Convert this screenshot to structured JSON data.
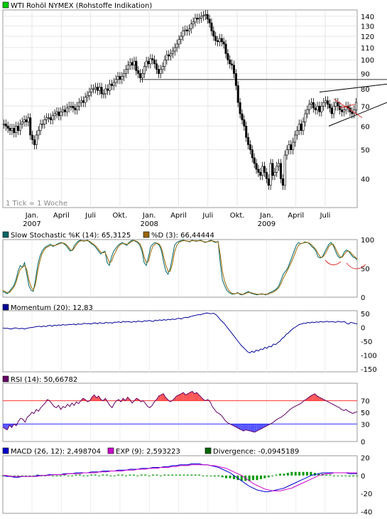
{
  "chart_data": [
    {
      "type": "candlestick",
      "title": "WTI Rohöl NYMEX (Rohstoffe Indikation)",
      "note": "1 Tick = 1 Woche",
      "x_ticks": [
        "Jan.",
        "April",
        "Juli",
        "Okt.",
        "Jan.",
        "April",
        "Juli",
        "Okt.",
        "Jan.",
        "April",
        "Juli"
      ],
      "year_labels": [
        {
          "label": "2007",
          "under_tick": 0
        },
        {
          "label": "2008",
          "under_tick": 4
        },
        {
          "label": "2009",
          "under_tick": 8
        }
      ],
      "y_ticks": [
        40,
        50,
        60,
        70,
        80,
        90,
        100,
        110,
        120,
        130,
        140
      ],
      "ylim": [
        32,
        147
      ],
      "scale": "log",
      "horizontal_line": 86,
      "close": [
        61,
        60,
        59,
        58,
        59,
        57,
        60,
        58,
        61,
        62,
        63,
        62,
        64,
        56,
        54,
        52,
        56,
        58,
        61,
        61,
        63,
        64,
        64,
        63,
        65,
        66,
        67,
        65,
        67,
        68,
        67,
        69,
        70,
        70,
        69,
        68,
        70,
        72,
        73,
        72,
        75,
        76,
        78,
        80,
        80,
        81,
        79,
        81,
        77,
        77,
        80,
        79,
        83,
        82,
        84,
        86,
        88,
        86,
        88,
        90,
        93,
        96,
        98,
        96,
        99,
        92,
        90,
        87,
        90,
        95,
        99,
        97,
        101,
        100,
        97,
        93,
        90,
        93,
        95,
        100,
        104,
        103,
        105,
        107,
        110,
        113,
        117,
        120,
        125,
        126,
        125,
        127,
        132,
        134,
        138,
        137,
        138,
        140,
        141,
        142,
        137,
        133,
        125,
        120,
        116,
        115,
        118,
        115,
        113,
        105,
        100,
        97,
        96,
        90,
        82,
        72,
        66,
        63,
        60,
        55,
        52,
        50,
        47,
        45,
        43,
        42,
        41,
        44,
        42,
        40,
        38,
        45,
        41,
        42,
        44,
        45,
        40,
        38,
        48,
        50,
        52,
        50,
        53,
        56,
        58,
        61,
        58,
        62,
        66,
        68,
        71,
        72,
        69,
        68,
        70,
        67,
        70,
        72,
        73,
        71,
        69,
        66,
        70,
        72,
        70,
        68,
        67,
        68,
        70,
        69,
        67,
        66,
        68,
        72
      ],
      "x_end_offset": 544
    },
    {
      "type": "line",
      "label": "Slow Stochastic %K (14): 65,3125",
      "label2": "%D (3): 66,44444",
      "y_ticks": [
        0,
        50,
        100
      ],
      "ylim": [
        0,
        100
      ],
      "series": [
        {
          "name": "Slow Stochastic %K (14): 65,3125",
          "color": "#006666",
          "values": [
            10,
            8,
            6,
            10,
            15,
            20,
            30,
            45,
            55,
            52,
            60,
            40,
            20,
            12,
            10,
            30,
            55,
            70,
            80,
            85,
            88,
            90,
            92,
            88,
            90,
            92,
            94,
            95,
            93,
            90,
            85,
            80,
            82,
            90,
            95,
            98,
            99,
            97,
            98,
            99,
            95,
            92,
            90,
            85,
            80,
            75,
            78,
            80,
            60,
            55,
            70,
            80,
            85,
            90,
            93,
            95,
            92,
            90,
            95,
            98,
            99,
            97,
            95,
            90,
            80,
            60,
            55,
            70,
            88,
            92,
            95,
            93,
            90,
            80,
            60,
            45,
            40,
            50,
            70,
            90,
            95,
            97,
            98,
            99,
            98,
            97,
            96,
            99,
            98,
            97,
            98,
            99,
            97,
            95,
            96,
            98,
            99,
            96,
            95,
            97,
            60,
            30,
            20,
            12,
            8,
            6,
            5,
            6,
            8,
            5,
            4,
            6,
            8,
            10,
            7,
            6,
            5,
            4,
            5,
            6,
            5,
            4,
            6,
            8,
            10,
            12,
            15,
            20,
            30,
            40,
            45,
            50,
            60,
            70,
            80,
            90,
            95,
            93,
            94,
            96,
            95,
            93,
            88,
            85,
            80,
            70,
            68,
            70,
            78,
            85,
            92,
            95,
            90,
            80,
            72,
            68,
            70,
            78,
            82,
            80,
            75,
            70,
            68,
            65
          ]
        },
        {
          "name": "%D (3): 66,44444",
          "color": "#996600",
          "values": [
            12,
            10,
            8,
            8,
            12,
            17,
            25,
            38,
            48,
            52,
            55,
            48,
            30,
            18,
            12,
            22,
            45,
            62,
            75,
            82,
            86,
            88,
            90,
            90,
            90,
            91,
            93,
            94,
            94,
            92,
            88,
            83,
            81,
            86,
            92,
            96,
            98,
            98,
            98,
            98,
            97,
            94,
            91,
            88,
            83,
            78,
            77,
            78,
            70,
            60,
            62,
            72,
            80,
            87,
            91,
            93,
            93,
            92,
            93,
            96,
            98,
            98,
            96,
            93,
            85,
            70,
            60,
            62,
            78,
            88,
            92,
            94,
            92,
            85,
            70,
            55,
            45,
            45,
            58,
            78,
            90,
            95,
            97,
            98,
            98,
            97,
            97,
            98,
            98,
            98,
            98,
            98,
            97,
            96,
            96,
            97,
            98,
            97,
            96,
            96,
            75,
            45,
            28,
            18,
            11,
            8,
            6,
            6,
            7,
            6,
            5,
            5,
            7,
            8,
            8,
            7,
            6,
            5,
            5,
            5,
            5,
            5,
            5,
            7,
            8,
            10,
            13,
            17,
            24,
            33,
            40,
            47,
            55,
            63,
            72,
            82,
            90,
            93,
            94,
            95,
            95,
            94,
            91,
            87,
            83,
            76,
            70,
            69,
            74,
            80,
            88,
            92,
            92,
            85,
            77,
            71,
            69,
            74,
            79,
            80,
            78,
            73,
            70,
            66
          ]
        }
      ],
      "annotation": "red hand-drawn arcs near recent lows"
    },
    {
      "type": "line",
      "label": "Momentum (20): 12,83",
      "y_ticks": [
        -150,
        -100,
        -50,
        0,
        50
      ],
      "ylim": [
        -160,
        60
      ],
      "series": [
        {
          "name": "Momentum (20): 12,83",
          "color": "#000099",
          "values": [
            -2,
            -4,
            -3,
            -5,
            -6,
            -3,
            -2,
            -4,
            -5,
            -3,
            -6,
            -4,
            -2,
            -1,
            0,
            2,
            3,
            4,
            2,
            5,
            3,
            6,
            7,
            4,
            8,
            6,
            9,
            7,
            10,
            8,
            9,
            11,
            10,
            12,
            9,
            13,
            11,
            12,
            15,
            13,
            14,
            12,
            15,
            16,
            13,
            17,
            15,
            14,
            18,
            16,
            17,
            15,
            19,
            18,
            20,
            17,
            22,
            19,
            21,
            20,
            18,
            22,
            19,
            23,
            21,
            20,
            24,
            22,
            25,
            23,
            21,
            26,
            24,
            27,
            25,
            28,
            26,
            29,
            27,
            30,
            28,
            31,
            33,
            30,
            34,
            36,
            35,
            38,
            40,
            42,
            44,
            46,
            45,
            48,
            50,
            52,
            50,
            49,
            51,
            47,
            40,
            30,
            22,
            15,
            5,
            -5,
            -15,
            -25,
            -35,
            -45,
            -55,
            -65,
            -72,
            -80,
            -88,
            -92,
            -86,
            -90,
            -82,
            -85,
            -78,
            -80,
            -72,
            -75,
            -68,
            -70,
            -60,
            -62,
            -55,
            -50,
            -40,
            -35,
            -25,
            -20,
            -12,
            -5,
            0,
            5,
            10,
            12,
            15,
            14,
            18,
            16,
            19,
            17,
            20,
            18,
            21,
            19,
            20,
            22,
            19,
            21,
            20,
            18,
            22,
            20,
            19,
            21,
            15,
            12,
            18,
            16,
            14,
            13
          ]
        }
      ]
    },
    {
      "type": "line",
      "label": "RSI (14): 50,66782",
      "y_ticks": [
        0,
        30,
        50,
        70
      ],
      "ylim": [
        0,
        100
      ],
      "overbought": 70,
      "oversold": 30,
      "series": [
        {
          "name": "RSI (14): 50,66782",
          "color": "#660066",
          "values": [
            25,
            22,
            20,
            28,
            24,
            30,
            27,
            35,
            40,
            38,
            33,
            42,
            45,
            50,
            48,
            55,
            52,
            58,
            62,
            66,
            72,
            70,
            65,
            60,
            58,
            62,
            55,
            60,
            58,
            64,
            60,
            66,
            62,
            68,
            65,
            70,
            74,
            72,
            68,
            70,
            76,
            80,
            75,
            78,
            72,
            70,
            74,
            68,
            62,
            58,
            65,
            70,
            72,
            68,
            74,
            70,
            76,
            72,
            66,
            70,
            74,
            72,
            68,
            70,
            65,
            60,
            58,
            62,
            68,
            72,
            78,
            80,
            82,
            76,
            72,
            68,
            70,
            74,
            78,
            80,
            82,
            84,
            80,
            82,
            84,
            86,
            82,
            84,
            80,
            76,
            72,
            70,
            72,
            68,
            60,
            55,
            50,
            48,
            45,
            40,
            35,
            32,
            30,
            28,
            26,
            24,
            22,
            20,
            18,
            20,
            19,
            18,
            17,
            16,
            18,
            20,
            22,
            24,
            26,
            28,
            30,
            32,
            35,
            38,
            40,
            42,
            45,
            48,
            52,
            55,
            58,
            60,
            62,
            64,
            66,
            70,
            72,
            75,
            78,
            80,
            82,
            78,
            76,
            74,
            72,
            70,
            68,
            66,
            64,
            62,
            60,
            58,
            55,
            53,
            55,
            52,
            50,
            48,
            50,
            51
          ]
        }
      ]
    },
    {
      "type": "line",
      "label": "MACD (26, 12): 2,498704",
      "label2": "EXP (9): 2,593223",
      "label3": "Divergence: -0,0945189",
      "y_ticks": [
        -40,
        -20,
        0,
        20
      ],
      "ylim": [
        -42,
        22
      ],
      "series": [
        {
          "name": "MACD (26, 12): 2,498704",
          "color": "#0000cc",
          "values": [
            0,
            -1,
            -1,
            -2,
            -2,
            -1,
            -1,
            -1,
            -1,
            0,
            0,
            0,
            1,
            1,
            1,
            1,
            2,
            2,
            2,
            3,
            3,
            3,
            3,
            4,
            4,
            4,
            5,
            5,
            5,
            5,
            6,
            6,
            6,
            7,
            7,
            7,
            8,
            8,
            8,
            9,
            9,
            9,
            10,
            10,
            11,
            11,
            12,
            12,
            12,
            13,
            13,
            13,
            12,
            12,
            11,
            10,
            9,
            7,
            5,
            3,
            0,
            -3,
            -6,
            -9,
            -12,
            -14,
            -16,
            -17,
            -18,
            -18,
            -17,
            -16,
            -15,
            -14,
            -12,
            -10,
            -8,
            -6,
            -4,
            -2,
            0,
            1,
            2,
            3,
            3,
            3,
            3,
            3,
            3,
            3,
            2,
            2,
            2
          ]
        },
        {
          "name": "EXP (9): 2,593223",
          "color": "#cc00cc",
          "values": [
            0,
            0,
            -1,
            -1,
            -1,
            -1,
            -1,
            -1,
            -1,
            -1,
            0,
            0,
            0,
            1,
            1,
            1,
            1,
            2,
            2,
            2,
            2,
            3,
            3,
            3,
            3,
            4,
            4,
            4,
            5,
            5,
            5,
            5,
            6,
            6,
            6,
            7,
            7,
            7,
            8,
            8,
            8,
            9,
            9,
            9,
            10,
            10,
            11,
            11,
            11,
            12,
            12,
            12,
            12,
            12,
            11,
            11,
            10,
            9,
            8,
            6,
            4,
            2,
            0,
            -3,
            -6,
            -9,
            -11,
            -13,
            -15,
            -16,
            -17,
            -17,
            -17,
            -16,
            -15,
            -14,
            -12,
            -10,
            -8,
            -6,
            -4,
            -2,
            0,
            1,
            2,
            2,
            3,
            3,
            3,
            3,
            3,
            3,
            3
          ]
        },
        {
          "name": "Divergence: -0,0945189",
          "color": "#006600",
          "values": [
            0,
            -1,
            0,
            -1,
            -1,
            0,
            0,
            0,
            0,
            1,
            0,
            0,
            1,
            0,
            0,
            0,
            1,
            0,
            0,
            1,
            1,
            0,
            0,
            1,
            1,
            0,
            1,
            1,
            0,
            0,
            1,
            1,
            0,
            1,
            1,
            0,
            1,
            1,
            0,
            1,
            1,
            0,
            1,
            1,
            1,
            1,
            1,
            1,
            1,
            1,
            1,
            1,
            0,
            0,
            0,
            -1,
            -1,
            -2,
            -3,
            -3,
            -4,
            -5,
            -6,
            -6,
            -6,
            -5,
            -5,
            -4,
            -3,
            -2,
            0,
            1,
            2,
            2,
            3,
            4,
            4,
            4,
            4,
            4,
            4,
            3,
            2,
            2,
            1,
            1,
            0,
            0,
            0,
            0,
            -1,
            -1,
            0
          ]
        }
      ]
    }
  ]
}
